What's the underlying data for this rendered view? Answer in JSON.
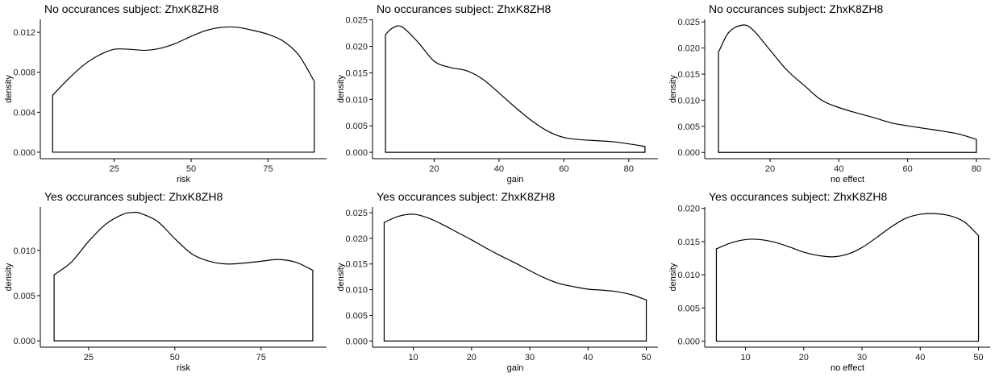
{
  "chart_data": [
    {
      "type": "area",
      "title": "No occurances subject:  ZhxK8ZH8",
      "xlabel": "risk",
      "ylabel": "density",
      "xlim": [
        1,
        94
      ],
      "ylim": [
        -0.00065,
        0.0133
      ],
      "xticks": [
        25,
        50,
        75
      ],
      "yticks": [
        0,
        0.004,
        0.008,
        0.012
      ],
      "ytick_labels": [
        "0.000",
        "0.004",
        "0.008",
        "0.012"
      ],
      "grid": false,
      "x": [
        5,
        10,
        15,
        20,
        25,
        30,
        35,
        40,
        45,
        50,
        55,
        60,
        65,
        70,
        75,
        80,
        85,
        90
      ],
      "y": [
        0.0057,
        0.0073,
        0.0087,
        0.0097,
        0.0103,
        0.0103,
        0.0102,
        0.0104,
        0.0109,
        0.0116,
        0.0122,
        0.0125,
        0.0125,
        0.0122,
        0.0118,
        0.0111,
        0.0097,
        0.0071
      ]
    },
    {
      "type": "area",
      "title": "No occurances subject:  ZhxK8ZH8",
      "xlabel": "gain",
      "ylabel": "density",
      "xlim": [
        1,
        89
      ],
      "ylim": [
        -0.0012,
        0.0251
      ],
      "xticks": [
        20,
        40,
        60,
        80
      ],
      "yticks": [
        0,
        0.005,
        0.01,
        0.015,
        0.02,
        0.025
      ],
      "ytick_labels": [
        "0.000",
        "0.005",
        "0.010",
        "0.015",
        "0.020",
        "0.025"
      ],
      "grid": false,
      "x": [
        5,
        7,
        10,
        15,
        20,
        25,
        30,
        35,
        40,
        45,
        50,
        55,
        60,
        65,
        70,
        75,
        80,
        85
      ],
      "y": [
        0.0222,
        0.0234,
        0.0237,
        0.0208,
        0.0172,
        0.016,
        0.0154,
        0.0138,
        0.0112,
        0.0085,
        0.006,
        0.004,
        0.0028,
        0.0024,
        0.0022,
        0.002,
        0.0016,
        0.0011
      ]
    },
    {
      "type": "area",
      "title": "No occurances subject:  ZhxK8ZH8",
      "xlabel": "no effect",
      "ylabel": "density",
      "xlim": [
        1,
        84
      ],
      "ylim": [
        -0.0012,
        0.0255
      ],
      "xticks": [
        20,
        40,
        60,
        80
      ],
      "yticks": [
        0,
        0.005,
        0.01,
        0.015,
        0.02,
        0.025
      ],
      "ytick_labels": [
        "0.000",
        "0.005",
        "0.010",
        "0.015",
        "0.020",
        "0.025"
      ],
      "grid": false,
      "x": [
        5,
        8,
        12,
        15,
        20,
        25,
        30,
        35,
        40,
        45,
        50,
        55,
        60,
        65,
        70,
        75,
        80
      ],
      "y": [
        0.0192,
        0.023,
        0.0244,
        0.0235,
        0.0196,
        0.0157,
        0.0128,
        0.01,
        0.0086,
        0.0076,
        0.0067,
        0.0057,
        0.0051,
        0.0046,
        0.0041,
        0.0035,
        0.0025
      ]
    },
    {
      "type": "area",
      "title": "Yes occurances subject:  ZhxK8ZH8",
      "xlabel": "risk",
      "ylabel": "density",
      "xlim": [
        11,
        94
      ],
      "ylim": [
        -0.0007,
        0.0148
      ],
      "xticks": [
        25,
        50,
        75
      ],
      "yticks": [
        0,
        0.005,
        0.01
      ],
      "ytick_labels": [
        "0.000",
        "0.005",
        "0.010"
      ],
      "grid": false,
      "x": [
        15,
        20,
        25,
        30,
        35,
        38,
        40,
        45,
        50,
        55,
        60,
        65,
        70,
        75,
        80,
        85,
        90
      ],
      "y": [
        0.0073,
        0.0087,
        0.011,
        0.0129,
        0.014,
        0.0142,
        0.0141,
        0.0132,
        0.0113,
        0.0096,
        0.0088,
        0.0085,
        0.0086,
        0.0088,
        0.009,
        0.0087,
        0.0078
      ]
    },
    {
      "type": "area",
      "title": "Yes occurances subject:  ZhxK8ZH8",
      "xlabel": "gain",
      "ylabel": "density",
      "xlim": [
        3,
        52
      ],
      "ylim": [
        -0.0012,
        0.0261
      ],
      "xticks": [
        10,
        20,
        30,
        40,
        50
      ],
      "yticks": [
        0,
        0.005,
        0.01,
        0.015,
        0.02,
        0.025
      ],
      "ytick_labels": [
        "0.000",
        "0.005",
        "0.010",
        "0.015",
        "0.020",
        "0.025"
      ],
      "grid": false,
      "x": [
        5,
        7.5,
        10,
        12.5,
        15,
        17.5,
        20,
        22.5,
        25,
        27.5,
        30,
        32.5,
        35,
        37.5,
        40,
        42.5,
        45,
        47.5,
        50
      ],
      "y": [
        0.0231,
        0.0243,
        0.0247,
        0.024,
        0.0227,
        0.0212,
        0.0197,
        0.0181,
        0.0166,
        0.0152,
        0.0137,
        0.0123,
        0.0112,
        0.0106,
        0.0101,
        0.0099,
        0.0096,
        0.009,
        0.008
      ]
    },
    {
      "type": "area",
      "title": "Yes occurances subject:  ZhxK8ZH8",
      "xlabel": "no effect",
      "ylabel": "density",
      "xlim": [
        3,
        52
      ],
      "ylim": [
        -0.0009,
        0.0202
      ],
      "xticks": [
        10,
        20,
        30,
        40,
        50
      ],
      "yticks": [
        0,
        0.005,
        0.01,
        0.015,
        0.02
      ],
      "ytick_labels": [
        "0.000",
        "0.005",
        "0.010",
        "0.015",
        "0.020"
      ],
      "grid": false,
      "x": [
        5,
        7.5,
        10,
        12.5,
        15,
        17.5,
        20,
        22.5,
        25,
        27.5,
        30,
        32.5,
        35,
        37.5,
        40,
        42.5,
        45,
        47.5,
        50
      ],
      "y": [
        0.0139,
        0.0148,
        0.0153,
        0.0153,
        0.0149,
        0.0142,
        0.0134,
        0.0129,
        0.0127,
        0.0131,
        0.0141,
        0.0156,
        0.0172,
        0.0185,
        0.0191,
        0.0192,
        0.0189,
        0.018,
        0.0159
      ]
    }
  ]
}
